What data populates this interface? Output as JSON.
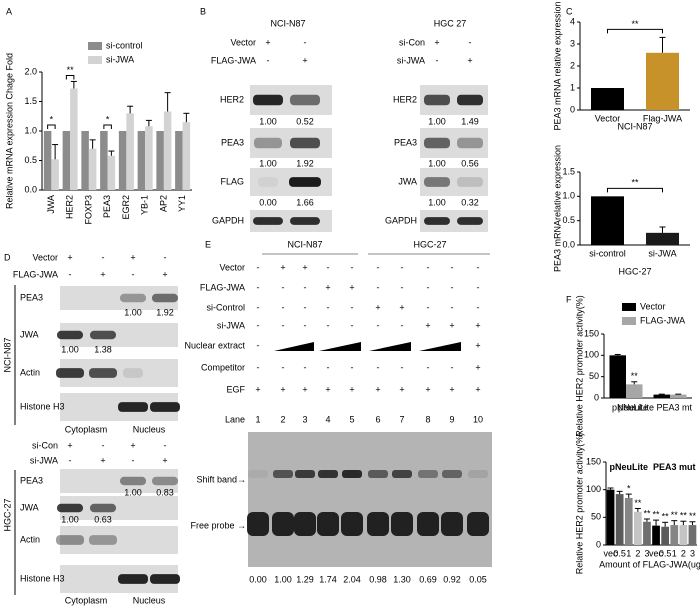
{
  "panel_a": {
    "letter": "A",
    "type": "bar",
    "y_label": "Relative mRNA expression Chage Fold",
    "categories": [
      "JWA",
      "HER2",
      "FOXP3",
      "PEA3",
      "EGR2",
      "YB-1",
      "AP2",
      "YY1"
    ],
    "series": [
      {
        "name": "si-control",
        "color": "#8c8c8c",
        "values": [
          1,
          1,
          1,
          1,
          1,
          1,
          1,
          1
        ]
      },
      {
        "name": "si-JWA",
        "color": "#d3d3d3",
        "values": [
          0.52,
          1.72,
          0.7,
          0.58,
          1.3,
          1.08,
          1.33,
          1.15
        ],
        "errors": [
          0.25,
          0.12,
          0.15,
          0.08,
          0.12,
          0.1,
          0.32,
          0.15
        ]
      }
    ],
    "ylim": [
      0,
      2
    ],
    "yticks": [
      {
        "value": 0,
        "label": "0.0"
      },
      {
        "value": 0.5,
        "label": "0.5"
      },
      {
        "value": 1,
        "label": "1.0"
      },
      {
        "value": 1.5,
        "label": "1.5"
      },
      {
        "value": 2,
        "label": "2.0"
      }
    ],
    "significance": [
      "*",
      "**",
      null,
      "*",
      null,
      null,
      null,
      null
    ]
  },
  "panel_b": {
    "letter": "B",
    "cells": [
      {
        "title": "NCI-N87",
        "conditions": [
          {
            "label": "Vector",
            "signs": [
              "+",
              "-"
            ]
          },
          {
            "label": "FLAG-JWA",
            "signs": [
              "-",
              "+"
            ]
          }
        ],
        "rows": [
          {
            "label": "HER2",
            "quant": [
              "1.00",
              "0.52"
            ]
          },
          {
            "label": "PEA3",
            "quant": [
              "1.00",
              "1.92"
            ]
          },
          {
            "label": "FLAG",
            "quant": [
              "0.00",
              "1.66"
            ]
          },
          {
            "label": "GAPDH"
          }
        ]
      },
      {
        "title": "HGC 27",
        "conditions": [
          {
            "label": "si-Con",
            "signs": [
              "+",
              "-"
            ]
          },
          {
            "label": "si-JWA",
            "signs": [
              "-",
              "+"
            ]
          }
        ],
        "rows": [
          {
            "label": "HER2",
            "quant": [
              "1.00",
              "1.49"
            ]
          },
          {
            "label": "PEA3",
            "quant": [
              "1.00",
              "0.56"
            ]
          },
          {
            "label": "JWA",
            "quant": [
              "1.00",
              "0.32"
            ]
          },
          {
            "label": "GAPDH"
          }
        ]
      }
    ]
  },
  "panel_c": {
    "letter": "C",
    "charts": [
      {
        "type": "bar",
        "y_label": "PEA3 mRNA relative expression",
        "x_label": "NCI-N87",
        "categories": [
          "Vector",
          "Flag-JWA"
        ],
        "series": [
          {
            "colors": [
              "#000000",
              "#c8922a"
            ],
            "values": [
              1,
              2.6
            ],
            "errors": [
              null,
              0.7
            ]
          }
        ],
        "ylim": [
          0,
          4
        ],
        "yticks": [
          0,
          1,
          2,
          3,
          4
        ],
        "significance": "**"
      },
      {
        "type": "bar",
        "y_label": "PEA3 mRNArelative expression",
        "x_label": "HGC-27",
        "categories": [
          "si-control",
          "si-JWA"
        ],
        "series": [
          {
            "colors": [
              "#000000",
              "#1a1a1a"
            ],
            "values": [
              1,
              0.25
            ],
            "errors": [
              null,
              0.12
            ]
          }
        ],
        "ylim": [
          0,
          1.5
        ],
        "yticks": [
          {
            "value": 0,
            "label": "0.0"
          },
          {
            "value": 0.5,
            "label": "0.5"
          },
          {
            "value": 1,
            "label": "1.0"
          },
          {
            "value": 1.5,
            "label": "1.5"
          }
        ],
        "significance": "**"
      }
    ]
  },
  "panel_d": {
    "letter": "D",
    "blocks": [
      {
        "cell_line": "NCI-N87",
        "conditions": [
          {
            "label": "Vector",
            "signs": [
              "+",
              "-",
              "+",
              "-"
            ]
          },
          {
            "label": "FLAG-JWA",
            "signs": [
              "-",
              "+",
              "-",
              "+"
            ]
          }
        ],
        "rows": [
          {
            "label": "PEA3",
            "quant": [
              null,
              null,
              "1.00",
              "1.92"
            ]
          },
          {
            "label": "JWA",
            "quant": [
              "1.00",
              "1.38",
              null,
              null
            ]
          },
          {
            "label": "Actin"
          },
          {
            "label": "Histone H3"
          }
        ],
        "fractions": [
          "Cytoplasm",
          "Nucleus"
        ]
      },
      {
        "cell_line": "HGC-27",
        "conditions": [
          {
            "label": "si-Con",
            "signs": [
              "+",
              "-",
              "+",
              "-"
            ]
          },
          {
            "label": "si-JWA",
            "signs": [
              "-",
              "+",
              "-",
              "+"
            ]
          }
        ],
        "rows": [
          {
            "label": "PEA3",
            "quant": [
              null,
              null,
              "1.00",
              "0.83"
            ]
          },
          {
            "label": "JWA",
            "quant": [
              "1.00",
              "0.63",
              null,
              null
            ]
          },
          {
            "label": "Actin"
          },
          {
            "label": "Histone H3"
          }
        ],
        "fractions": [
          "Cytoplasm",
          "Nucleus"
        ]
      }
    ]
  },
  "panel_e": {
    "letter": "E",
    "groups": [
      "NCI-N87",
      "HGC-27"
    ],
    "rows": [
      {
        "label": "Vector",
        "signs": [
          "-",
          "+",
          "+",
          "-",
          "-",
          "-",
          "-",
          "-",
          "-",
          "-"
        ]
      },
      {
        "label": "FLAG-JWA",
        "signs": [
          "-",
          "-",
          "-",
          "+",
          "+",
          "-",
          "-",
          "-",
          "-",
          "-"
        ]
      },
      {
        "label": "si-Control",
        "signs": [
          "-",
          "-",
          "-",
          "-",
          "-",
          "+",
          "+",
          "-",
          "-",
          "-"
        ]
      },
      {
        "label": "si-JWA",
        "signs": [
          "-",
          "-",
          "-",
          "-",
          "-",
          "-",
          "-",
          "+",
          "+",
          "+"
        ]
      },
      {
        "label": "Nuclear extract",
        "signs": [
          "-",
          null,
          null,
          null,
          null,
          null,
          null,
          null,
          null,
          "+"
        ]
      },
      {
        "label": "Competitor",
        "signs": [
          "-",
          "-",
          "-",
          "-",
          "-",
          "-",
          "-",
          "-",
          "-",
          "+"
        ]
      },
      {
        "label": "EGF",
        "signs": [
          "+",
          "+",
          "+",
          "+",
          "+",
          "+",
          "+",
          "+",
          "+",
          "+"
        ]
      }
    ],
    "lane_label": "Lane",
    "lanes": [
      1,
      2,
      3,
      4,
      5,
      6,
      7,
      8,
      9,
      10
    ],
    "shift_band": "Shift band→",
    "free_probe": "Free probe →",
    "quant": [
      "0.00",
      "1.00",
      "1.29",
      "1.74",
      "2.04",
      "0.98",
      "1.30",
      "0.69",
      "0.92",
      "0.05"
    ]
  },
  "panel_f": {
    "letter": "F",
    "charts": [
      {
        "type": "bar",
        "y_label": "Relative HER2 promoter activity(%)",
        "categories": [
          "pNeuLite",
          "pNeuLite PEA3 mt"
        ],
        "series": [
          {
            "name": "Vector",
            "color": "#000000",
            "values": [
              100,
              8
            ],
            "errors": [
              2,
              1
            ]
          },
          {
            "name": "FLAG-JWA",
            "color": "#a6a6a6",
            "values": [
              32,
              8
            ],
            "errors": [
              6,
              1
            ],
            "significance": [
              "**",
              null
            ]
          }
        ],
        "ylim": [
          0,
          150
        ],
        "yticks": [
          0,
          50,
          100,
          150
        ]
      },
      {
        "type": "bar",
        "y_label": "Relative HER2 promoter activity(%)",
        "x_label": "Amount of FLAG-JWA(ug)",
        "categories": [
          "vec",
          0.5,
          1,
          2,
          3,
          "vec",
          0.5,
          1,
          2,
          3
        ],
        "group_labels": [
          "pNeuLite",
          "PEA3 mut"
        ],
        "series": [
          {
            "colors": [
              "#000000",
              "#5a5a5a",
              "#858585",
              "#c4c4c4",
              "#6e6e6e",
              "#000000",
              "#5a5a5a",
              "#858585",
              "#c4c4c4",
              "#6e6e6e"
            ],
            "values": [
              100,
              92,
              85,
              60,
              42,
              35,
              33,
              36,
              36,
              36
            ],
            "errors": [
              3,
              5,
              7,
              6,
              5,
              10,
              8,
              8,
              7,
              6
            ],
            "significance": [
              null,
              null,
              "*",
              "**",
              "**",
              "**",
              "**",
              "**",
              "**",
              "**"
            ]
          }
        ],
        "ylim": [
          0,
          150
        ],
        "yticks": [
          0,
          50,
          100,
          150
        ]
      }
    ]
  }
}
